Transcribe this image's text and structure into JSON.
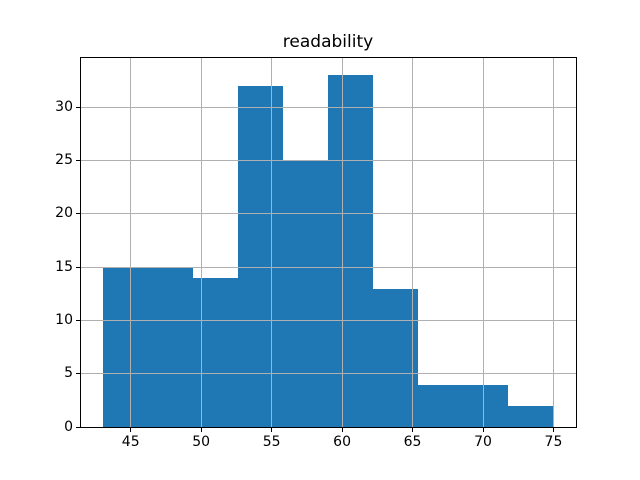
{
  "chart_data": {
    "type": "bar",
    "subtype": "histogram",
    "title": "readability",
    "xlabel": "",
    "ylabel": "",
    "bin_edges": [
      43.0,
      46.2,
      49.4,
      52.6,
      55.8,
      59.0,
      62.2,
      65.4,
      68.6,
      71.8,
      75.0
    ],
    "counts": [
      15,
      15,
      14,
      32,
      25,
      33,
      13,
      4,
      4,
      2
    ],
    "x_ticks": [
      45,
      50,
      55,
      60,
      65,
      70,
      75
    ],
    "y_ticks": [
      0,
      5,
      10,
      15,
      20,
      25,
      30
    ],
    "xlim": [
      41.4,
      76.6
    ],
    "ylim": [
      0,
      34.65
    ],
    "grid": true,
    "legend": "none",
    "bar_color": "#1f77b4",
    "grid_color": "#b0b0b0",
    "spine_color": "#000000",
    "tick_color": "#000000",
    "text_color": "#000000",
    "background_color": "#ffffff"
  }
}
